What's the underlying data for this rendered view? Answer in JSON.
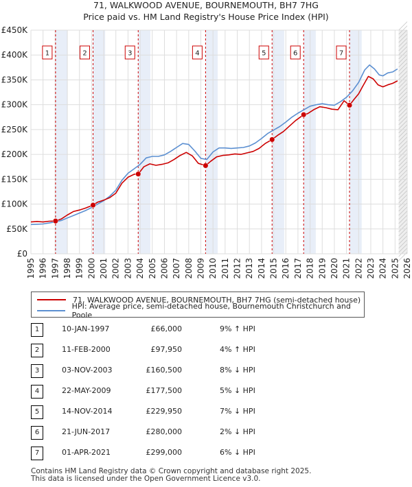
{
  "chart_data": {
    "type": "line",
    "title": "71, WALKWOOD AVENUE, BOURNEMOUTH, BH7 7HG",
    "subtitle": "Price paid vs. HM Land Registry's House Price Index (HPI)",
    "xlim": [
      1995,
      2026
    ],
    "ylim": [
      0,
      450000
    ],
    "x_ticks": [
      1995,
      1996,
      1997,
      1998,
      1999,
      2000,
      2001,
      2002,
      2003,
      2004,
      2005,
      2006,
      2007,
      2008,
      2009,
      2010,
      2011,
      2012,
      2013,
      2014,
      2015,
      2016,
      2017,
      2018,
      2019,
      2020,
      2021,
      2022,
      2023,
      2024,
      2025,
      2026
    ],
    "y_ticks": [
      {
        "value": 0,
        "label": "£0"
      },
      {
        "value": 50000,
        "label": "£50K"
      },
      {
        "value": 100000,
        "label": "£100K"
      },
      {
        "value": 150000,
        "label": "£150K"
      },
      {
        "value": 200000,
        "label": "£200K"
      },
      {
        "value": 250000,
        "label": "£250K"
      },
      {
        "value": 300000,
        "label": "£300K"
      },
      {
        "value": 350000,
        "label": "£350K"
      },
      {
        "value": 400000,
        "label": "£400K"
      },
      {
        "value": 450000,
        "label": "£450K"
      }
    ],
    "series": [
      {
        "name": "71, WALKWOOD AVENUE, BOURNEMOUTH, BH7 7HG (semi-detached house)",
        "color": "#cc0000",
        "points": [
          [
            1995.0,
            64000
          ],
          [
            1995.5,
            65000
          ],
          [
            1996.0,
            64000
          ],
          [
            1996.5,
            65500
          ],
          [
            1997.03,
            66000
          ],
          [
            1997.5,
            70000
          ],
          [
            1998.0,
            78000
          ],
          [
            1998.5,
            85000
          ],
          [
            1999.0,
            88000
          ],
          [
            1999.5,
            92000
          ],
          [
            2000.12,
            97950
          ],
          [
            2000.5,
            104000
          ],
          [
            2001.0,
            108000
          ],
          [
            2001.5,
            113000
          ],
          [
            2002.0,
            122000
          ],
          [
            2002.5,
            142000
          ],
          [
            2003.0,
            154000
          ],
          [
            2003.5,
            160000
          ],
          [
            2003.84,
            160500
          ],
          [
            2004.3,
            175000
          ],
          [
            2004.8,
            181000
          ],
          [
            2005.3,
            178000
          ],
          [
            2005.8,
            180000
          ],
          [
            2006.3,
            183000
          ],
          [
            2006.8,
            190000
          ],
          [
            2007.3,
            198000
          ],
          [
            2007.8,
            204000
          ],
          [
            2008.3,
            197000
          ],
          [
            2008.8,
            182000
          ],
          [
            2009.39,
            177500
          ],
          [
            2009.8,
            186000
          ],
          [
            2010.3,
            195000
          ],
          [
            2010.8,
            198000
          ],
          [
            2011.3,
            199000
          ],
          [
            2011.8,
            201000
          ],
          [
            2012.3,
            200000
          ],
          [
            2012.8,
            203000
          ],
          [
            2013.3,
            206000
          ],
          [
            2013.8,
            212000
          ],
          [
            2014.3,
            222000
          ],
          [
            2014.87,
            229950
          ],
          [
            2015.3,
            238000
          ],
          [
            2015.8,
            246000
          ],
          [
            2016.3,
            257000
          ],
          [
            2016.8,
            268000
          ],
          [
            2017.47,
            280000
          ],
          [
            2017.8,
            282000
          ],
          [
            2018.3,
            290000
          ],
          [
            2018.8,
            296000
          ],
          [
            2019.3,
            294000
          ],
          [
            2019.8,
            291000
          ],
          [
            2020.3,
            290000
          ],
          [
            2020.8,
            308000
          ],
          [
            2021.25,
            299000
          ],
          [
            2021.6,
            310000
          ],
          [
            2022.0,
            322000
          ],
          [
            2022.4,
            340000
          ],
          [
            2022.8,
            357000
          ],
          [
            2023.2,
            352000
          ],
          [
            2023.6,
            340000
          ],
          [
            2024.0,
            336000
          ],
          [
            2024.4,
            340000
          ],
          [
            2024.8,
            343000
          ],
          [
            2025.2,
            348000
          ]
        ]
      },
      {
        "name": "HPI: Average price, semi-detached house, Bournemouth Christchurch and Poole",
        "color": "#5b8fd1",
        "points": [
          [
            1995.0,
            59000
          ],
          [
            1995.5,
            59500
          ],
          [
            1996.0,
            60000
          ],
          [
            1996.5,
            62000
          ],
          [
            1997.0,
            64000
          ],
          [
            1997.5,
            67000
          ],
          [
            1998.0,
            72000
          ],
          [
            1998.5,
            77000
          ],
          [
            1999.0,
            82000
          ],
          [
            1999.5,
            87000
          ],
          [
            2000.0,
            93000
          ],
          [
            2000.5,
            100000
          ],
          [
            2001.0,
            107000
          ],
          [
            2001.5,
            116000
          ],
          [
            2002.0,
            128000
          ],
          [
            2002.5,
            148000
          ],
          [
            2003.0,
            162000
          ],
          [
            2003.5,
            171000
          ],
          [
            2004.0,
            180000
          ],
          [
            2004.5,
            193000
          ],
          [
            2005.0,
            196000
          ],
          [
            2005.5,
            196000
          ],
          [
            2006.0,
            199000
          ],
          [
            2006.5,
            206000
          ],
          [
            2007.0,
            214000
          ],
          [
            2007.5,
            222000
          ],
          [
            2008.0,
            220000
          ],
          [
            2008.5,
            207000
          ],
          [
            2009.0,
            192000
          ],
          [
            2009.5,
            190000
          ],
          [
            2010.0,
            205000
          ],
          [
            2010.5,
            213000
          ],
          [
            2011.0,
            213000
          ],
          [
            2011.5,
            212000
          ],
          [
            2012.0,
            213000
          ],
          [
            2012.5,
            214000
          ],
          [
            2013.0,
            217000
          ],
          [
            2013.5,
            223000
          ],
          [
            2014.0,
            232000
          ],
          [
            2014.5,
            242000
          ],
          [
            2015.0,
            249000
          ],
          [
            2015.5,
            256000
          ],
          [
            2016.0,
            265000
          ],
          [
            2016.5,
            275000
          ],
          [
            2017.0,
            283000
          ],
          [
            2017.5,
            290000
          ],
          [
            2018.0,
            297000
          ],
          [
            2018.5,
            300000
          ],
          [
            2019.0,
            302000
          ],
          [
            2019.5,
            300000
          ],
          [
            2020.0,
            299000
          ],
          [
            2020.5,
            306000
          ],
          [
            2021.0,
            315000
          ],
          [
            2021.5,
            328000
          ],
          [
            2022.0,
            345000
          ],
          [
            2022.5,
            370000
          ],
          [
            2022.9,
            380000
          ],
          [
            2023.3,
            372000
          ],
          [
            2023.7,
            360000
          ],
          [
            2024.0,
            358000
          ],
          [
            2024.4,
            364000
          ],
          [
            2024.8,
            366000
          ],
          [
            2025.2,
            372000
          ]
        ]
      }
    ],
    "sales": [
      {
        "num": "1",
        "x": 1997.03,
        "price": 66000,
        "date": "10-JAN-1997",
        "price_label": "£66,000",
        "hpi": "9% ↑ HPI"
      },
      {
        "num": "2",
        "x": 2000.12,
        "price": 97950,
        "date": "11-FEB-2000",
        "price_label": "£97,950",
        "hpi": "4% ↑ HPI"
      },
      {
        "num": "3",
        "x": 2003.84,
        "price": 160500,
        "date": "03-NOV-2003",
        "price_label": "£160,500",
        "hpi": "8% ↓ HPI"
      },
      {
        "num": "4",
        "x": 2009.39,
        "price": 177500,
        "date": "22-MAY-2009",
        "price_label": "£177,500",
        "hpi": "5% ↓ HPI"
      },
      {
        "num": "5",
        "x": 2014.87,
        "price": 229950,
        "date": "14-NOV-2014",
        "price_label": "£229,950",
        "hpi": "7% ↓ HPI"
      },
      {
        "num": "6",
        "x": 2017.47,
        "price": 280000,
        "date": "21-JUN-2017",
        "price_label": "£280,000",
        "hpi": "2% ↓ HPI"
      },
      {
        "num": "7",
        "x": 2021.25,
        "price": 299000,
        "date": "01-APR-2021",
        "price_label": "£299,000",
        "hpi": "6% ↓ HPI"
      }
    ],
    "future_from": 2025.3,
    "colors": {
      "property": "#cc0000",
      "hpi": "#5b8fd1",
      "shade": "#e8eef8",
      "grid": "#dddddd",
      "vline": "#cc0000"
    }
  },
  "legend": {
    "property_label": "71, WALKWOOD AVENUE, BOURNEMOUTH, BH7 7HG (semi-detached house)",
    "hpi_label": "HPI: Average price, semi-detached house, Bournemouth Christchurch and Poole"
  },
  "footer": {
    "line1": "Contains HM Land Registry data © Crown copyright and database right 2025.",
    "line2": "This data is licensed under the Open Government Licence v3.0."
  }
}
